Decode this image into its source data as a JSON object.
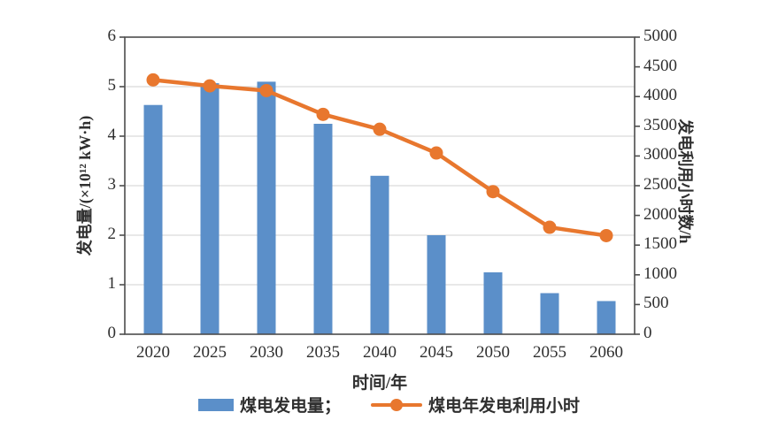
{
  "chart_data": {
    "type": "bar+line combo, dual y-axis",
    "categories": [
      "2020",
      "2025",
      "2030",
      "2035",
      "2040",
      "2045",
      "2050",
      "2055",
      "2060"
    ],
    "series": [
      {
        "name": "煤电发电量",
        "type": "bar",
        "axis": "left",
        "color": "#5b8fc9",
        "values": [
          4.63,
          5.07,
          5.1,
          4.25,
          3.2,
          2.0,
          1.25,
          0.83,
          0.67
        ]
      },
      {
        "name": "煤电年发电利用小时",
        "type": "line",
        "axis": "right",
        "color": "#e8772e",
        "values": [
          4280,
          4180,
          4100,
          3700,
          3450,
          3050,
          2400,
          1800,
          1660
        ]
      }
    ],
    "left_axis": {
      "label": "发电量/(×10¹² kW·h)",
      "min": 0,
      "max": 6,
      "step": 1,
      "ticks": [
        "0",
        "1",
        "2",
        "3",
        "4",
        "5",
        "6"
      ]
    },
    "right_axis": {
      "label": "发电利用小时数/h",
      "min": 0,
      "max": 5000,
      "step": 500,
      "ticks": [
        "0",
        "500",
        "1000",
        "1500",
        "2000",
        "2500",
        "3000",
        "3500",
        "4000",
        "4500",
        "5000"
      ]
    },
    "xlabel": "时间/年",
    "grid": "horizontal gridlines at left-axis integers, light gray",
    "legend_position": "bottom center",
    "colors": {
      "bar": "#5b8fc9",
      "line": "#e8772e",
      "gridline": "#d9d9d9",
      "axis_border": "#4d4d4d",
      "text": "#2f2f2f",
      "background": "#ffffff"
    }
  },
  "legend": {
    "bar_label": "煤电发电量；",
    "line_label": "煤电年发电利用小时"
  }
}
